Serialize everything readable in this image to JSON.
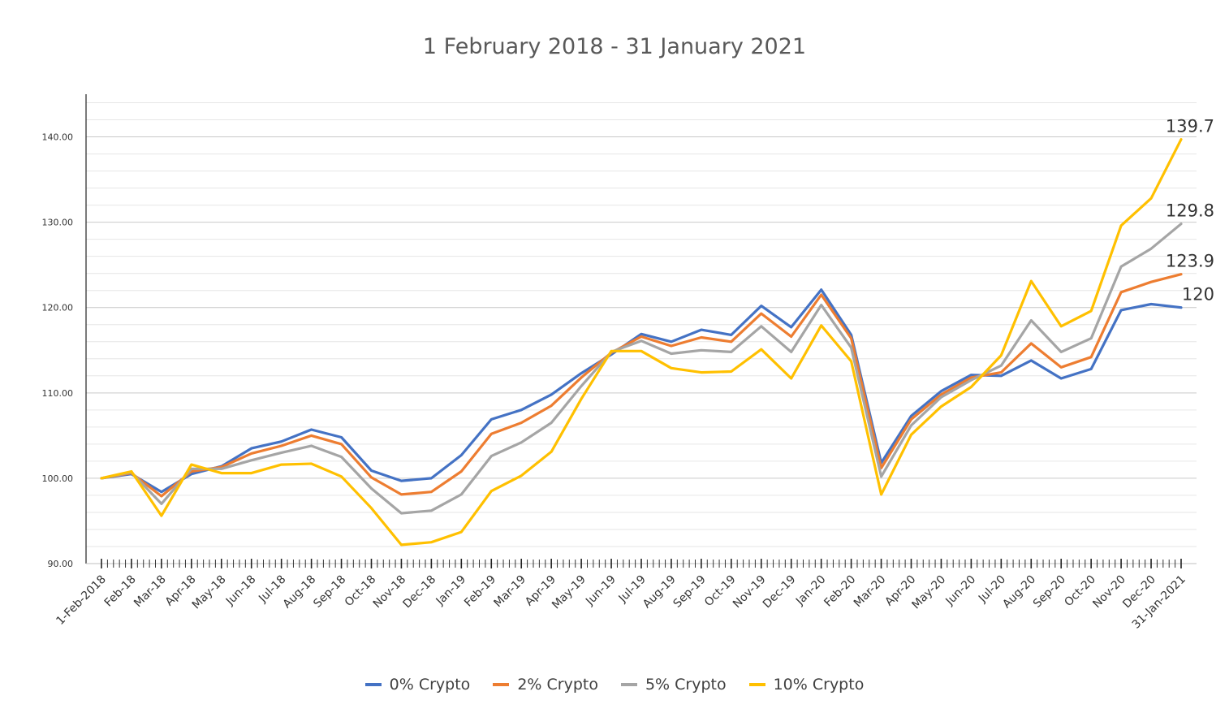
{
  "chart_data": {
    "type": "line",
    "title": "1 February 2018 - 31 January 2021",
    "xlabel": "",
    "ylabel": "",
    "ylim": [
      90,
      145
    ],
    "yticks": [
      90,
      100,
      110,
      120,
      130,
      140
    ],
    "ytick_labels": [
      "90.00",
      "100.00",
      "110.00",
      "120.00",
      "130.00",
      "140.00"
    ],
    "grid": true,
    "legend_position": "bottom",
    "categories": [
      "1-Feb-2018",
      "Feb-18",
      "Mar-18",
      "Apr-18",
      "May-18",
      "Jun-18",
      "Jul-18",
      "Aug-18",
      "Sep-18",
      "Oct-18",
      "Nov-18",
      "Dec-18",
      "Jan-19",
      "Feb-19",
      "Mar-19",
      "Apr-19",
      "May-19",
      "Jun-19",
      "Jul-19",
      "Aug-19",
      "Sep-19",
      "Oct-19",
      "Nov-19",
      "Dec-19",
      "Jan-20",
      "Feb-20",
      "Mar-20",
      "Apr-20",
      "May-20",
      "Jun-20",
      "Jul-20",
      "Aug-20",
      "Sep-20",
      "Oct-20",
      "Nov-20",
      "Dec-20",
      "31-Jan-2021"
    ],
    "series": [
      {
        "name": "0% Crypto",
        "color": "#4472C4",
        "values": [
          100.0,
          100.5,
          98.4,
          100.5,
          101.4,
          103.5,
          104.3,
          105.7,
          104.8,
          100.9,
          99.7,
          100.0,
          102.7,
          106.9,
          108.0,
          109.8,
          112.3,
          114.5,
          116.9,
          116.0,
          117.4,
          116.8,
          120.2,
          117.7,
          122.1,
          116.8,
          101.8,
          107.3,
          110.2,
          112.1,
          112.0,
          113.8,
          111.7,
          112.8,
          119.7,
          120.4,
          120.0
        ]
      },
      {
        "name": "2% Crypto",
        "color": "#ED7D31",
        "values": [
          100.0,
          100.6,
          97.9,
          100.8,
          101.3,
          102.9,
          103.8,
          105.0,
          104.0,
          100.1,
          98.1,
          98.4,
          100.8,
          105.2,
          106.5,
          108.5,
          111.8,
          114.7,
          116.6,
          115.5,
          116.5,
          116.0,
          119.3,
          116.6,
          121.5,
          116.4,
          101.2,
          106.9,
          109.8,
          111.8,
          112.4,
          115.8,
          113.0,
          114.2,
          121.8,
          123.0,
          123.9
        ]
      },
      {
        "name": "5% Crypto",
        "color": "#A5A5A5",
        "values": [
          100.0,
          100.7,
          97.0,
          101.1,
          101.1,
          102.1,
          103.0,
          103.8,
          102.5,
          98.8,
          95.9,
          96.2,
          98.1,
          102.6,
          104.2,
          106.5,
          110.8,
          114.8,
          116.1,
          114.6,
          115.0,
          114.8,
          117.8,
          114.8,
          120.3,
          115.3,
          100.2,
          106.2,
          109.5,
          111.5,
          113.2,
          118.5,
          114.8,
          116.4,
          124.8,
          126.9,
          129.8
        ]
      },
      {
        "name": "10% Crypto",
        "color": "#FFC000",
        "values": [
          100.0,
          100.8,
          95.6,
          101.6,
          100.6,
          100.6,
          101.6,
          101.7,
          100.2,
          96.5,
          92.2,
          92.5,
          93.7,
          98.5,
          100.3,
          103.1,
          109.3,
          114.9,
          114.9,
          112.9,
          112.4,
          112.5,
          115.1,
          111.7,
          117.9,
          113.7,
          98.1,
          105.1,
          108.4,
          110.7,
          114.4,
          123.1,
          117.8,
          119.6,
          129.6,
          132.8,
          139.7
        ]
      }
    ],
    "end_labels": [
      "120",
      "123.9",
      "129.8",
      "139.7"
    ]
  }
}
